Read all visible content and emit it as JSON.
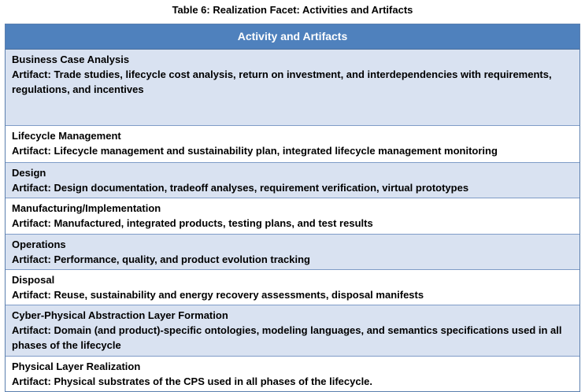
{
  "caption": "Table 6: Realization Facet: Activities and Artifacts",
  "table": {
    "header": "Activity and Artifacts",
    "rows": [
      {
        "activity": "Business Case Analysis",
        "artifact": "Artifact: Trade studies, lifecycle cost analysis, return on investment, and interdependencies with requirements, regulations, and incentives"
      },
      {
        "activity": "Lifecycle Management",
        "artifact": "Artifact: Lifecycle management and sustainability plan, integrated lifecycle management monitoring"
      },
      {
        "activity": "Design",
        "artifact": "Artifact: Design documentation, tradeoff analyses, requirement verification, virtual prototypes"
      },
      {
        "activity": "Manufacturing/Implementation",
        "artifact": "Artifact: Manufactured, integrated products, testing plans, and test results"
      },
      {
        "activity": "Operations",
        "artifact": "Artifact: Performance, quality, and product evolution tracking"
      },
      {
        "activity": "Disposal",
        "artifact": "Artifact: Reuse, sustainability and energy recovery assessments, disposal manifests"
      },
      {
        "activity": "Cyber-Physical Abstraction Layer Formation",
        "artifact": "Artifact: Domain (and product)-specific ontologies, modeling languages, and semantics specifications used in all phases of the lifecycle"
      },
      {
        "activity": "Physical Layer Realization",
        "artifact": "Artifact: Physical substrates of the CPS used in all phases of the lifecycle."
      }
    ]
  },
  "colors": {
    "header_bg": "#4f81bd",
    "shaded_row_bg": "#d9e2f1",
    "plain_row_bg": "#ffffff"
  }
}
